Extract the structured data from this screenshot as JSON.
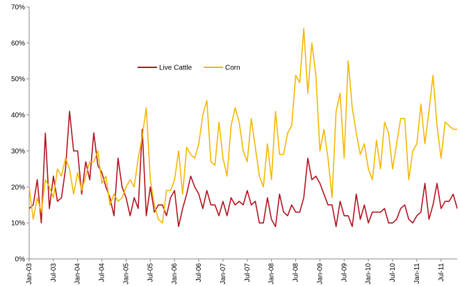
{
  "chart_data": {
    "type": "line",
    "categories": [
      "Jan-03",
      null,
      null,
      null,
      null,
      null,
      "Jul-03",
      null,
      null,
      null,
      null,
      null,
      "Jan-04",
      null,
      null,
      null,
      null,
      null,
      "Jul-04",
      null,
      null,
      null,
      null,
      null,
      "Jan-05",
      null,
      null,
      null,
      null,
      null,
      "Jul-05",
      null,
      null,
      null,
      null,
      null,
      "Jan-06",
      null,
      null,
      null,
      null,
      null,
      "Jul-06",
      null,
      null,
      null,
      null,
      null,
      "Jan-07",
      null,
      null,
      null,
      null,
      null,
      "Jul-07",
      null,
      null,
      null,
      null,
      null,
      "Jan-08",
      null,
      null,
      null,
      null,
      null,
      "Jul-08",
      null,
      null,
      null,
      null,
      null,
      "Jan-09",
      null,
      null,
      null,
      null,
      null,
      "Jul-09",
      null,
      null,
      null,
      null,
      null,
      "Jan-10",
      null,
      null,
      null,
      null,
      null,
      "Jul-10",
      null,
      null,
      null,
      null,
      null,
      "Jan-11",
      null,
      null,
      null,
      null,
      null,
      "Jul-11",
      null,
      null,
      null,
      null
    ],
    "series": [
      {
        "name": "Live Cattle",
        "color": "#b3121f",
        "values": [
          14,
          15,
          22,
          10,
          35,
          14,
          23,
          16,
          17,
          25,
          41,
          30,
          30,
          18,
          27,
          22,
          35,
          26,
          24,
          20,
          17,
          12,
          28,
          20,
          17,
          12,
          17,
          14,
          36,
          12,
          20,
          13,
          15,
          15,
          12,
          17,
          19,
          9,
          14,
          18,
          23,
          20,
          18,
          14,
          19,
          15,
          15,
          12,
          16,
          12,
          17,
          15,
          16,
          15,
          19,
          15,
          16,
          10,
          10,
          17,
          11,
          9,
          18,
          13,
          12,
          15,
          13,
          13,
          17,
          28,
          22,
          23,
          21,
          18,
          15,
          15,
          9,
          16,
          12,
          12,
          9,
          18,
          11,
          15,
          10,
          13,
          13,
          13,
          14,
          10,
          10,
          11,
          14,
          15,
          11,
          10,
          12,
          13,
          21,
          11,
          15,
          21,
          14,
          16,
          16,
          18,
          14
        ]
      },
      {
        "name": "Corn",
        "color": "#f5b700",
        "values": [
          20,
          11,
          17,
          13,
          22,
          20,
          17,
          25,
          23,
          28,
          25,
          18,
          24,
          19,
          23,
          27,
          27,
          30,
          21,
          23,
          15,
          18,
          16,
          17,
          20,
          22,
          20,
          28,
          34,
          42,
          22,
          15,
          11,
          10,
          19,
          19,
          22,
          30,
          18,
          31,
          29,
          28,
          32,
          40,
          44,
          27,
          26,
          38,
          28,
          23,
          37,
          42,
          38,
          30,
          27,
          39,
          31,
          23,
          20,
          32,
          22,
          41,
          29,
          29,
          35,
          37,
          51,
          49,
          64,
          46,
          60,
          51,
          30,
          36,
          28,
          17,
          41,
          46,
          28,
          55,
          42,
          35,
          29,
          32,
          25,
          22,
          33,
          25,
          38,
          35,
          25,
          32,
          39,
          39,
          22,
          30,
          32,
          43,
          32,
          41,
          51,
          37,
          28,
          38,
          37,
          36,
          36
        ]
      }
    ],
    "ylim": [
      0,
      70
    ],
    "yticks": [
      {
        "value": 0,
        "label": "0%"
      },
      {
        "value": 10,
        "label": "10%"
      },
      {
        "value": 20,
        "label": "20%"
      },
      {
        "value": 30,
        "label": "30%"
      },
      {
        "value": 40,
        "label": "40%"
      },
      {
        "value": 50,
        "label": "50%"
      },
      {
        "value": 60,
        "label": "60%"
      },
      {
        "value": 70,
        "label": "70%"
      }
    ],
    "grid": false,
    "legend": "top-center"
  }
}
